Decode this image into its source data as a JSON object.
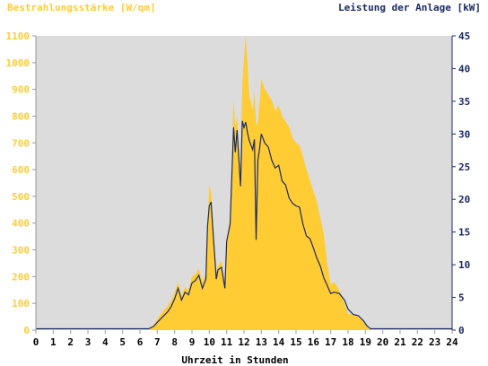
{
  "chart_data": {
    "type": "area",
    "left_axis_title": "Bestrahlungsstärke [W/qm]",
    "right_axis_title": "Leistung der Anlage [kW]",
    "xlabel": "Uhrzeit in Stunden",
    "x_ticks": [
      "0",
      "1",
      "2",
      "3",
      "4",
      "5",
      "6",
      "7",
      "8",
      "9",
      "10",
      "11",
      "12",
      "13",
      "14",
      "15",
      "16",
      "17",
      "18",
      "19",
      "20",
      "21",
      "22",
      "23",
      "24"
    ],
    "y_left_ticks": [
      "0",
      "100",
      "200",
      "300",
      "400",
      "500",
      "600",
      "700",
      "800",
      "900",
      "1000",
      "1100"
    ],
    "y_right_ticks": [
      "0",
      "5",
      "10",
      "15",
      "20",
      "25",
      "30",
      "35",
      "40",
      "45"
    ],
    "xlim": [
      0,
      24
    ],
    "y_left_lim": [
      0,
      1100
    ],
    "y_right_lim": [
      0,
      45
    ],
    "grid": false,
    "colors": {
      "plot_background": "#dcdcdc",
      "irradiance_fill": "#ffcc33",
      "power_line": "#1a2a66",
      "left_axis_text": "#ffcc33",
      "right_axis_text": "#1a2a66",
      "x_axis_text": "#000000"
    },
    "series": [
      {
        "axis": "left",
        "style": "area",
        "x": [
          0,
          6.5,
          6.8,
          7.0,
          7.3,
          7.6,
          7.8,
          8.0,
          8.2,
          8.4,
          8.6,
          8.8,
          9.0,
          9.2,
          9.4,
          9.6,
          9.8,
          9.9,
          10.0,
          10.1,
          10.2,
          10.4,
          10.5,
          10.7,
          10.9,
          11.0,
          11.2,
          11.4,
          11.5,
          11.6,
          11.8,
          11.9,
          12.0,
          12.1,
          12.2,
          12.3,
          12.5,
          12.6,
          12.7,
          12.8,
          12.9,
          13.0,
          13.2,
          13.4,
          13.6,
          13.8,
          14.0,
          14.2,
          14.4,
          14.6,
          14.8,
          15.0,
          15.2,
          15.4,
          15.6,
          15.8,
          16.0,
          16.2,
          16.4,
          16.6,
          16.8,
          17.0,
          17.2,
          17.5,
          17.8,
          18.0,
          18.3,
          18.6,
          18.9,
          19.1,
          19.3,
          19.5,
          24
        ],
        "values": [
          0,
          0,
          20,
          40,
          70,
          90,
          110,
          140,
          180,
          130,
          160,
          150,
          200,
          210,
          230,
          180,
          210,
          400,
          540,
          520,
          420,
          220,
          240,
          260,
          180,
          340,
          420,
          860,
          760,
          800,
          600,
          920,
          1020,
          1100,
          1000,
          880,
          820,
          900,
          760,
          780,
          850,
          940,
          900,
          880,
          860,
          820,
          840,
          800,
          780,
          760,
          720,
          700,
          690,
          650,
          600,
          560,
          520,
          480,
          420,
          360,
          250,
          170,
          180,
          150,
          100,
          60,
          60,
          50,
          30,
          10,
          0,
          0,
          0
        ]
      },
      {
        "axis": "right",
        "style": "line",
        "x": [
          0,
          6.5,
          6.8,
          7.0,
          7.3,
          7.6,
          7.8,
          8.0,
          8.2,
          8.4,
          8.6,
          8.8,
          9.0,
          9.2,
          9.4,
          9.6,
          9.8,
          9.9,
          10.0,
          10.1,
          10.2,
          10.4,
          10.5,
          10.7,
          10.9,
          11.0,
          11.2,
          11.4,
          11.5,
          11.6,
          11.8,
          11.9,
          12.0,
          12.1,
          12.2,
          12.3,
          12.5,
          12.6,
          12.7,
          12.8,
          12.9,
          13.0,
          13.2,
          13.4,
          13.6,
          13.8,
          14.0,
          14.2,
          14.4,
          14.6,
          14.8,
          15.0,
          15.2,
          15.4,
          15.6,
          15.8,
          16.0,
          16.2,
          16.4,
          16.6,
          16.8,
          17.0,
          17.2,
          17.5,
          17.8,
          18.0,
          18.3,
          18.6,
          18.9,
          19.1,
          19.3,
          19.5,
          24
        ],
        "values": [
          0.2,
          0.2,
          0.6,
          1.2,
          2.0,
          2.8,
          3.6,
          4.8,
          6.4,
          4.6,
          5.8,
          5.4,
          7.2,
          7.6,
          8.4,
          6.4,
          7.8,
          16.0,
          19.0,
          19.6,
          15.6,
          7.8,
          9.2,
          9.6,
          6.4,
          13.6,
          16.2,
          31.0,
          27.2,
          30.6,
          22.0,
          32.0,
          31.0,
          31.8,
          30.2,
          29.0,
          27.6,
          29.2,
          13.8,
          26.0,
          27.8,
          30.0,
          28.6,
          28.0,
          26.0,
          24.8,
          25.2,
          22.8,
          22.2,
          20.2,
          19.4,
          19.0,
          18.8,
          16.2,
          14.4,
          14.0,
          12.6,
          11.0,
          9.8,
          8.0,
          6.8,
          5.6,
          5.8,
          5.6,
          4.6,
          3.2,
          2.4,
          2.2,
          1.4,
          0.6,
          0.2,
          0.2,
          0.2
        ]
      }
    ]
  }
}
